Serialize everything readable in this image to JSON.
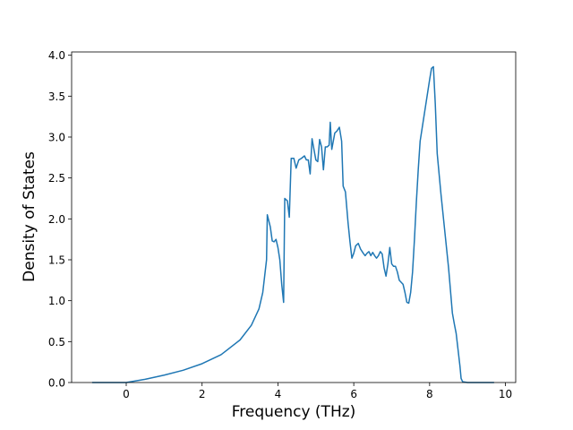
{
  "chart_data": {
    "type": "line",
    "x_label": "Frequency (THz)",
    "y_label": "Density of States",
    "color": "#1f77b4",
    "xlim": [
      -1.44,
      10.27
    ],
    "ylim": [
      0,
      4.04
    ],
    "xticks": [
      0,
      2,
      4,
      6,
      8,
      10
    ],
    "yticks": [
      {
        "value": 0,
        "label": "0.0"
      },
      0.5,
      {
        "value": 1,
        "label": "1.0"
      },
      1.5,
      {
        "value": 2,
        "label": "2.0"
      },
      2.5,
      {
        "value": 3,
        "label": "3.0"
      },
      3.5,
      {
        "value": 4,
        "label": "4.0"
      }
    ],
    "x": [
      -0.9,
      -0.5,
      0,
      0.5,
      1.0,
      1.5,
      2.0,
      2.5,
      3.0,
      3.3,
      3.5,
      3.6,
      3.65,
      3.7,
      3.72,
      3.8,
      3.85,
      3.9,
      3.95,
      4.0,
      4.05,
      4.1,
      4.15,
      4.18,
      4.25,
      4.3,
      4.35,
      4.42,
      4.48,
      4.55,
      4.62,
      4.7,
      4.75,
      4.8,
      4.85,
      4.9,
      5.0,
      5.05,
      5.1,
      5.15,
      5.2,
      5.25,
      5.3,
      5.35,
      5.38,
      5.42,
      5.5,
      5.55,
      5.62,
      5.68,
      5.72,
      5.78,
      5.85,
      5.9,
      5.95,
      6.0,
      6.05,
      6.12,
      6.18,
      6.25,
      6.3,
      6.35,
      6.4,
      6.45,
      6.5,
      6.55,
      6.6,
      6.65,
      6.7,
      6.75,
      6.8,
      6.85,
      6.9,
      6.95,
      7.0,
      7.05,
      7.1,
      7.15,
      7.2,
      7.3,
      7.35,
      7.4,
      7.45,
      7.5,
      7.55,
      7.6,
      7.65,
      7.7,
      7.75,
      7.8,
      7.85,
      7.9,
      7.95,
      8.0,
      8.05,
      8.1,
      8.15,
      8.2,
      8.3,
      8.4,
      8.5,
      8.6,
      8.65,
      8.7,
      8.75,
      8.8,
      8.83,
      8.87,
      9.0,
      9.5,
      9.7
    ],
    "values": [
      0,
      0,
      0,
      0.04,
      0.09,
      0.15,
      0.23,
      0.34,
      0.52,
      0.7,
      0.9,
      1.1,
      1.3,
      1.5,
      2.05,
      1.9,
      1.73,
      1.72,
      1.75,
      1.65,
      1.5,
      1.2,
      0.98,
      2.25,
      2.22,
      2.02,
      2.74,
      2.74,
      2.62,
      2.72,
      2.74,
      2.77,
      2.72,
      2.72,
      2.55,
      2.98,
      2.72,
      2.7,
      2.97,
      2.88,
      2.6,
      2.88,
      2.88,
      2.9,
      3.18,
      2.85,
      3.05,
      3.07,
      3.12,
      2.95,
      2.4,
      2.33,
      1.95,
      1.72,
      1.52,
      1.58,
      1.67,
      1.7,
      1.63,
      1.58,
      1.55,
      1.58,
      1.6,
      1.55,
      1.59,
      1.55,
      1.52,
      1.55,
      1.6,
      1.57,
      1.4,
      1.3,
      1.45,
      1.65,
      1.45,
      1.42,
      1.42,
      1.35,
      1.25,
      1.2,
      1.1,
      0.98,
      0.97,
      1.1,
      1.35,
      1.75,
      2.2,
      2.6,
      2.95,
      3.1,
      3.25,
      3.4,
      3.55,
      3.7,
      3.84,
      3.86,
      3.4,
      2.8,
      2.3,
      1.85,
      1.4,
      0.85,
      0.72,
      0.6,
      0.4,
      0.2,
      0.05,
      0.01,
      0,
      0,
      0
    ]
  }
}
